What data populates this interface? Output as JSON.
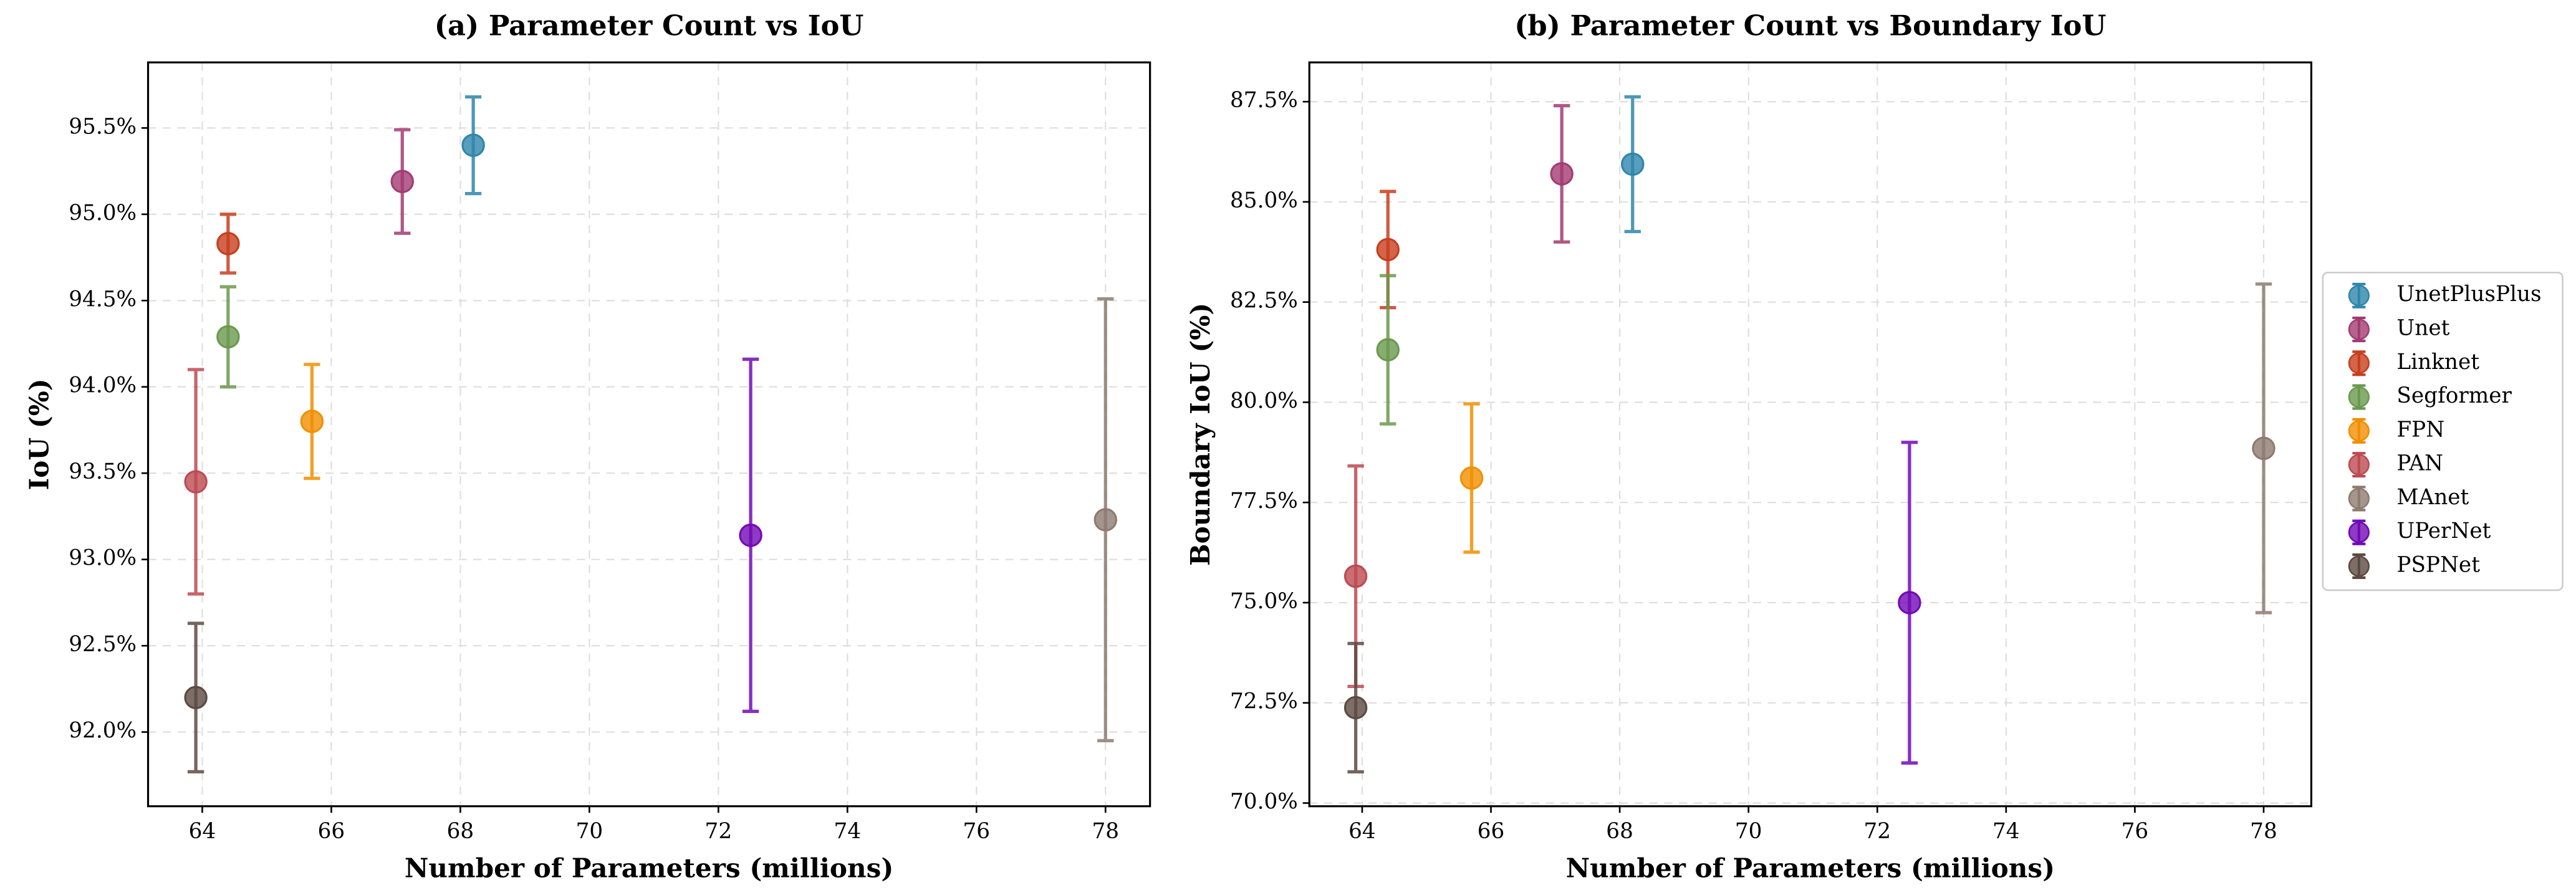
{
  "chart_data": [
    {
      "type": "scatter",
      "title": "(a) Parameter Count vs IoU",
      "x_label": "Number of Parameters (millions)",
      "y_label": "IoU (%)",
      "xlim": [
        63.16,
        78.69
      ],
      "ylim": [
        91.57,
        95.88
      ],
      "grid": true,
      "xticks": [
        64,
        66,
        68,
        70,
        72,
        74,
        76,
        78
      ],
      "yticks": [
        {
          "value": 92.0,
          "label": "92.0%"
        },
        {
          "value": 92.5,
          "label": "92.5%"
        },
        {
          "value": 93.0,
          "label": "93.0%"
        },
        {
          "value": 93.5,
          "label": "93.5%"
        },
        {
          "value": 94.0,
          "label": "94.0%"
        },
        {
          "value": 94.5,
          "label": "94.5%"
        },
        {
          "value": 95.0,
          "label": "95.0%"
        },
        {
          "value": 95.5,
          "label": "95.5%"
        }
      ],
      "series": [
        {
          "name": "UnetPlusPlus",
          "color": "#2E86AB",
          "x": [
            68.2
          ],
          "values": [
            95.4
          ],
          "errors": [
            0.28
          ]
        },
        {
          "name": "Unet",
          "color": "#A23B72",
          "x": [
            67.1
          ],
          "values": [
            95.19
          ],
          "errors": [
            0.3
          ]
        },
        {
          "name": "Linknet",
          "color": "#C73E1D",
          "x": [
            64.4
          ],
          "values": [
            94.83
          ],
          "errors": [
            0.17
          ]
        },
        {
          "name": "Segformer",
          "color": "#6A994E",
          "x": [
            64.4
          ],
          "values": [
            94.29
          ],
          "errors": [
            0.29
          ]
        },
        {
          "name": "FPN",
          "color": "#F18F01",
          "x": [
            65.7
          ],
          "values": [
            93.8
          ],
          "errors": [
            0.33
          ]
        },
        {
          "name": "PAN",
          "color": "#BC4B51",
          "x": [
            63.9
          ],
          "values": [
            93.45
          ],
          "errors": [
            0.65
          ]
        },
        {
          "name": "MAnet",
          "color": "#8D7B70",
          "x": [
            78.0
          ],
          "values": [
            93.23
          ],
          "errors": [
            1.28
          ]
        },
        {
          "name": "UPerNet",
          "color": "#7209B7",
          "x": [
            72.5
          ],
          "values": [
            93.14
          ],
          "errors": [
            1.02
          ]
        },
        {
          "name": "PSPNet",
          "color": "#5D4A42",
          "x": [
            63.9
          ],
          "values": [
            92.2
          ],
          "errors": [
            0.43
          ]
        }
      ]
    },
    {
      "type": "scatter",
      "title": "(b) Parameter Count vs Boundary IoU",
      "x_label": "Number of Parameters (millions)",
      "y_label": "Boundary IoU (%)",
      "xlim": [
        63.18,
        78.74
      ],
      "ylim": [
        69.92,
        88.48
      ],
      "grid": true,
      "legend": "outside right",
      "xticks": [
        64,
        66,
        68,
        70,
        72,
        74,
        76,
        78
      ],
      "yticks": [
        {
          "value": 70.0,
          "label": "70.0%"
        },
        {
          "value": 72.5,
          "label": "72.5%"
        },
        {
          "value": 75.0,
          "label": "75.0%"
        },
        {
          "value": 77.5,
          "label": "77.5%"
        },
        {
          "value": 80.0,
          "label": "80.0%"
        },
        {
          "value": 82.5,
          "label": "82.5%"
        },
        {
          "value": 85.0,
          "label": "85.0%"
        },
        {
          "value": 87.5,
          "label": "87.5%"
        }
      ],
      "series": [
        {
          "name": "UnetPlusPlus",
          "color": "#2E86AB",
          "x": [
            68.2
          ],
          "values": [
            85.94
          ],
          "errors": [
            1.68
          ]
        },
        {
          "name": "Unet",
          "color": "#A23B72",
          "x": [
            67.1
          ],
          "values": [
            85.7
          ],
          "errors": [
            1.7
          ]
        },
        {
          "name": "Linknet",
          "color": "#C73E1D",
          "x": [
            64.4
          ],
          "values": [
            83.81
          ],
          "errors": [
            1.45
          ]
        },
        {
          "name": "Segformer",
          "color": "#6A994E",
          "x": [
            64.4
          ],
          "values": [
            81.31
          ],
          "errors": [
            1.85
          ]
        },
        {
          "name": "FPN",
          "color": "#F18F01",
          "x": [
            65.7
          ],
          "values": [
            78.11
          ],
          "errors": [
            1.85
          ]
        },
        {
          "name": "PAN",
          "color": "#BC4B51",
          "x": [
            63.9
          ],
          "values": [
            75.66
          ],
          "errors": [
            2.75
          ]
        },
        {
          "name": "MAnet",
          "color": "#8D7B70",
          "x": [
            78.0
          ],
          "values": [
            78.85
          ],
          "errors": [
            4.1
          ]
        },
        {
          "name": "UPerNet",
          "color": "#7209B7",
          "x": [
            72.5
          ],
          "values": [
            75.0
          ],
          "errors": [
            4.0
          ]
        },
        {
          "name": "PSPNet",
          "color": "#5D4A42",
          "x": [
            63.9
          ],
          "values": [
            72.38
          ],
          "errors": [
            1.6
          ]
        }
      ]
    }
  ]
}
